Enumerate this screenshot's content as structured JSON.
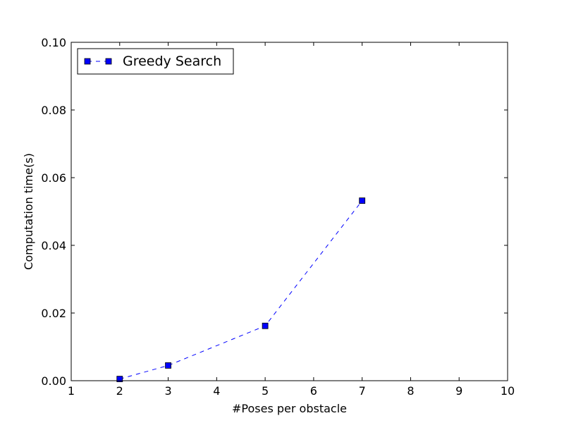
{
  "chart_data": {
    "type": "line",
    "title": "",
    "xlabel": "#Poses per obstacle",
    "ylabel": "Computation time(s)",
    "xlim": [
      1,
      10
    ],
    "ylim": [
      0.0,
      0.1
    ],
    "xticks": [
      1,
      2,
      3,
      4,
      5,
      6,
      7,
      8,
      9,
      10
    ],
    "xtick_labels": [
      "1",
      "2",
      "3",
      "4",
      "5",
      "6",
      "7",
      "8",
      "9",
      "10"
    ],
    "yticks": [
      0.0,
      0.02,
      0.04,
      0.06,
      0.08,
      0.1
    ],
    "ytick_labels": [
      "0.00",
      "0.02",
      "0.04",
      "0.06",
      "0.08",
      "0.10"
    ],
    "grid": false,
    "legend_position": "top-left",
    "series": [
      {
        "name": "Greedy Search",
        "color": "#0000ff",
        "line_style": "dashed",
        "marker": "square",
        "x": [
          2,
          3,
          5,
          7
        ],
        "y": [
          0.0005,
          0.0045,
          0.0162,
          0.0532
        ]
      }
    ]
  }
}
